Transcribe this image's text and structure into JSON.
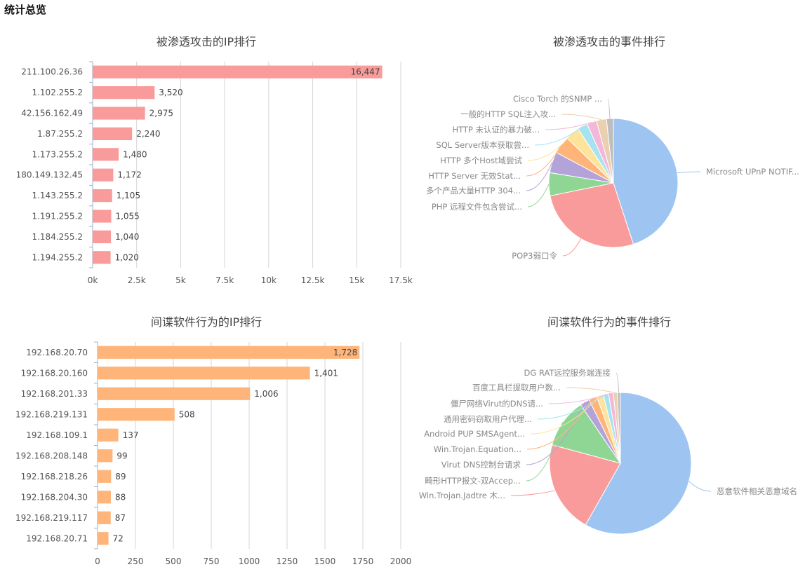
{
  "page": {
    "title": "统计总览"
  },
  "chart_data": [
    {
      "type": "bar",
      "title": "被渗透攻击的IP排行",
      "orientation": "horizontal",
      "color": "#f99b9b",
      "categories": [
        "211.100.26.36",
        "1.102.255.2",
        "42.156.162.49",
        "1.87.255.2",
        "1.173.255.2",
        "180.149.132.45",
        "1.143.255.2",
        "1.191.255.2",
        "1.184.255.2",
        "1.194.255.2"
      ],
      "values": [
        16447,
        3520,
        2975,
        2240,
        1480,
        1172,
        1105,
        1055,
        1040,
        1020
      ],
      "value_labels": [
        "16,447",
        "3,520",
        "2,975",
        "2,240",
        "1,480",
        "1,172",
        "1,105",
        "1,055",
        "1,040",
        "1,020"
      ],
      "xlim": [
        0,
        17500
      ],
      "xticks": [
        "0k",
        "2.5k",
        "5k",
        "7.5k",
        "10k",
        "12.5k",
        "15k",
        "17.5k"
      ],
      "grid": true
    },
    {
      "type": "pie",
      "title": "被渗透攻击的事件排行",
      "slices": [
        {
          "label": "Microsoft UPnP NOTIF...",
          "value": 44.5,
          "color": "#9ec5f2"
        },
        {
          "label": "POP3弱口令",
          "value": 26.5,
          "color": "#f99b9b"
        },
        {
          "label": "PHP 远程文件包含尝试...",
          "value": 5.7,
          "color": "#8fd694"
        },
        {
          "label": "多个产品大量HTTP 304...",
          "value": 5.2,
          "color": "#b3a3d9"
        },
        {
          "label": "HTTP Server 无效Stat...",
          "value": 4.4,
          "color": "#ffb57a"
        },
        {
          "label": "HTTP 多个Host域尝试",
          "value": 3.5,
          "color": "#fde49a"
        },
        {
          "label": "SQL Server版本获取尝...",
          "value": 2.5,
          "color": "#a6e3f0"
        },
        {
          "label": "HTTP 未认证的暴力破...",
          "value": 2.4,
          "color": "#f5b7d8"
        },
        {
          "label": "一般的HTTP SQL注入攻...",
          "value": 2.5,
          "color": "#e8d0b0"
        },
        {
          "label": "Cisco Torch 的SNMP ...",
          "value": 1.7,
          "color": "#bdbdbd"
        }
      ]
    },
    {
      "type": "bar",
      "title": "间谍软件行为的IP排行",
      "orientation": "horizontal",
      "color": "#ffb57a",
      "categories": [
        "192.168.20.70",
        "192.168.20.160",
        "192.168.201.33",
        "192.168.219.131",
        "192.168.109.1",
        "192.168.208.148",
        "192.168.218.26",
        "192.168.204.30",
        "192.168.219.117",
        "192.168.20.71"
      ],
      "values": [
        1728,
        1401,
        1006,
        508,
        137,
        99,
        89,
        88,
        87,
        72
      ],
      "value_labels": [
        "1,728",
        "1,401",
        "1,006",
        "508",
        "137",
        "99",
        "89",
        "88",
        "87",
        "72"
      ],
      "xlim": [
        0,
        2000
      ],
      "xticks": [
        "0",
        "250",
        "500",
        "750",
        "1000",
        "1250",
        "1500",
        "1750",
        "2000"
      ],
      "grid": true
    },
    {
      "type": "pie",
      "title": "间谍软件行为的事件排行",
      "slices": [
        {
          "label": "恶意软件相关恶意域名",
          "value": 58.2,
          "color": "#9ec5f2"
        },
        {
          "label": "Win.Trojan.Jadtre 木...",
          "value": 21.0,
          "color": "#f99b9b"
        },
        {
          "label": "畸形HTTP报文-双Accep...",
          "value": 11.3,
          "color": "#8fd694"
        },
        {
          "label": "Virut DNS控制台请求",
          "value": 2.2,
          "color": "#b3a3d9"
        },
        {
          "label": "Win.Trojan.Equation...",
          "value": 1.9,
          "color": "#ffb57a"
        },
        {
          "label": "Android PUP SMSAgent...",
          "value": 1.5,
          "color": "#fde49a"
        },
        {
          "label": "通用密码窃取用户代理...",
          "value": 1.2,
          "color": "#a6e3f0"
        },
        {
          "label": "僵尸网络Virut的DNS请...",
          "value": 1.1,
          "color": "#f5b7d8"
        },
        {
          "label": "百度工具栏提取用户数...",
          "value": 0.9,
          "color": "#e8d0b0"
        },
        {
          "label": "DG RAT远控服务端连接",
          "value": 0.7,
          "color": "#bdbdbd"
        }
      ]
    }
  ]
}
